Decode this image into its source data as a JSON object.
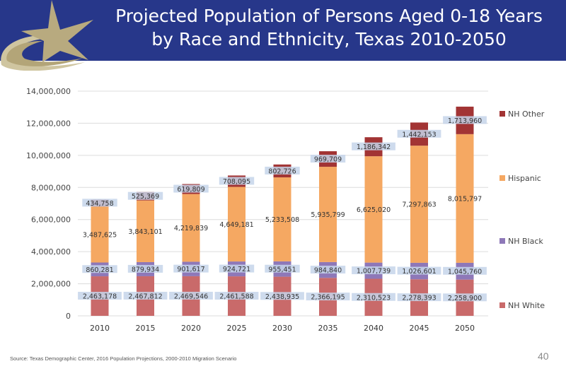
{
  "header": {
    "title_line1": "Projected Population of Persons Aged 0-18 Years",
    "title_line2": "by Race and Ethnicity, Texas 2010-2050"
  },
  "footer": {
    "source": "Source: Texas Demographic Center, 2016 Population Projections, 2000-2010 Migration Scenario",
    "page_number": "40"
  },
  "chart_data": {
    "type": "bar",
    "stacked": true,
    "title": "",
    "xlabel": "",
    "ylabel": "",
    "categories": [
      "2010",
      "2015",
      "2020",
      "2025",
      "2030",
      "2035",
      "2040",
      "2045",
      "2050"
    ],
    "ylim": [
      0,
      14000000
    ],
    "yticks": [
      "0",
      "2,000,000",
      "4,000,000",
      "6,000,000",
      "8,000,000",
      "10,000,000",
      "12,000,000",
      "14,000,000"
    ],
    "grid": true,
    "legend_position": "right",
    "series": [
      {
        "name": "NH White",
        "color": "#c96a6a",
        "values": [
          2463178,
          2467812,
          2469546,
          2461588,
          2438935,
          2366195,
          2310523,
          2278393,
          2258900
        ],
        "labels": [
          "2,463,178",
          "2,467,812",
          "2,469,546",
          "2,461,588",
          "2,438,935",
          "2,366,195",
          "2,310,523",
          "2,278,393",
          "2,258,900"
        ]
      },
      {
        "name": "NH Black",
        "color": "#8e78b8",
        "values": [
          860281,
          879934,
          901617,
          924721,
          955451,
          984840,
          1007739,
          1026601,
          1045760
        ],
        "labels": [
          "860,281",
          "879,934",
          "901,617",
          "924,721",
          "955,451",
          "984,840",
          "1,007,739",
          "1,026,601",
          "1,045,760"
        ]
      },
      {
        "name": "Hispanic",
        "color": "#f5a862",
        "values": [
          3487625,
          3843101,
          4219839,
          4649181,
          5233508,
          5935799,
          6625020,
          7297863,
          8015797
        ],
        "labels": [
          "3,487,625",
          "3,843,101",
          "4,219,839",
          "4,649,181",
          "5,233,508",
          "5,935,799",
          "6,625,020",
          "7,297,863",
          "8,015,797"
        ]
      },
      {
        "name": "NH Other",
        "color": "#a23434",
        "values": [
          434758,
          525369,
          619809,
          708095,
          802726,
          969709,
          1186342,
          1442153,
          1713960
        ],
        "labels": [
          "434,758",
          "525,369",
          "619,809",
          "708,095",
          "802,726",
          "969,709",
          "1,186,342",
          "1,442,153",
          "1,713,960"
        ]
      }
    ]
  }
}
